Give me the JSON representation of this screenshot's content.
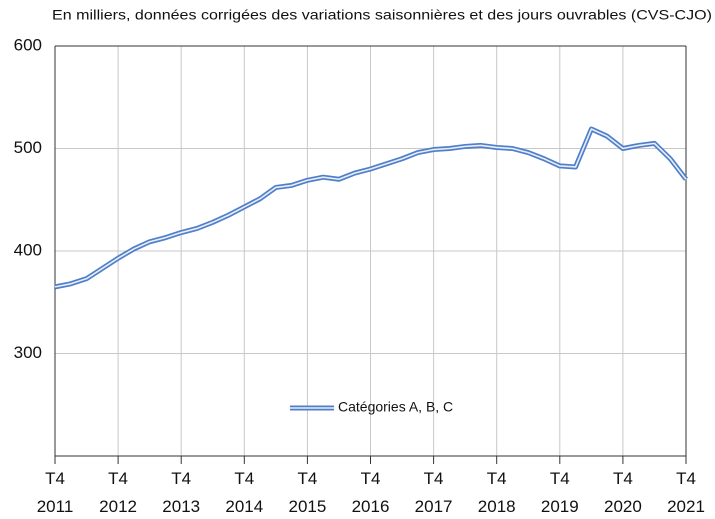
{
  "chart_data": {
    "type": "line",
    "title": "En milliers, données corrigées des variations saisonnières et des jours ouvrables (CVS-CJO)",
    "categories": [
      "T4 2011",
      null,
      null,
      null,
      "T4 2012",
      null,
      null,
      null,
      "T4 2013",
      null,
      null,
      null,
      "T4 2014",
      null,
      null,
      null,
      "T4 2015",
      null,
      null,
      null,
      "T4 2016",
      null,
      null,
      null,
      "T4 2017",
      null,
      null,
      null,
      "T4 2018",
      null,
      null,
      null,
      "T4 2019",
      null,
      null,
      null,
      "T4 2020",
      null,
      null,
      null,
      "T4 2021"
    ],
    "series": [
      {
        "name": "Catégories A, B, C",
        "color": "#4f7fc8",
        "values": [
          365,
          368,
          373,
          383,
          393,
          402,
          409,
          413,
          418,
          422,
          428,
          435,
          443,
          451,
          462,
          464,
          469,
          472,
          470,
          476,
          480,
          485,
          490,
          496,
          499,
          500,
          502,
          503,
          501,
          500,
          496,
          490,
          483,
          482,
          519,
          512,
          500,
          503,
          505,
          490,
          470
        ]
      }
    ],
    "ylim": [
      200,
      600
    ],
    "yticks": [
      300,
      400,
      500,
      600
    ],
    "grid": true,
    "legend": "center"
  }
}
